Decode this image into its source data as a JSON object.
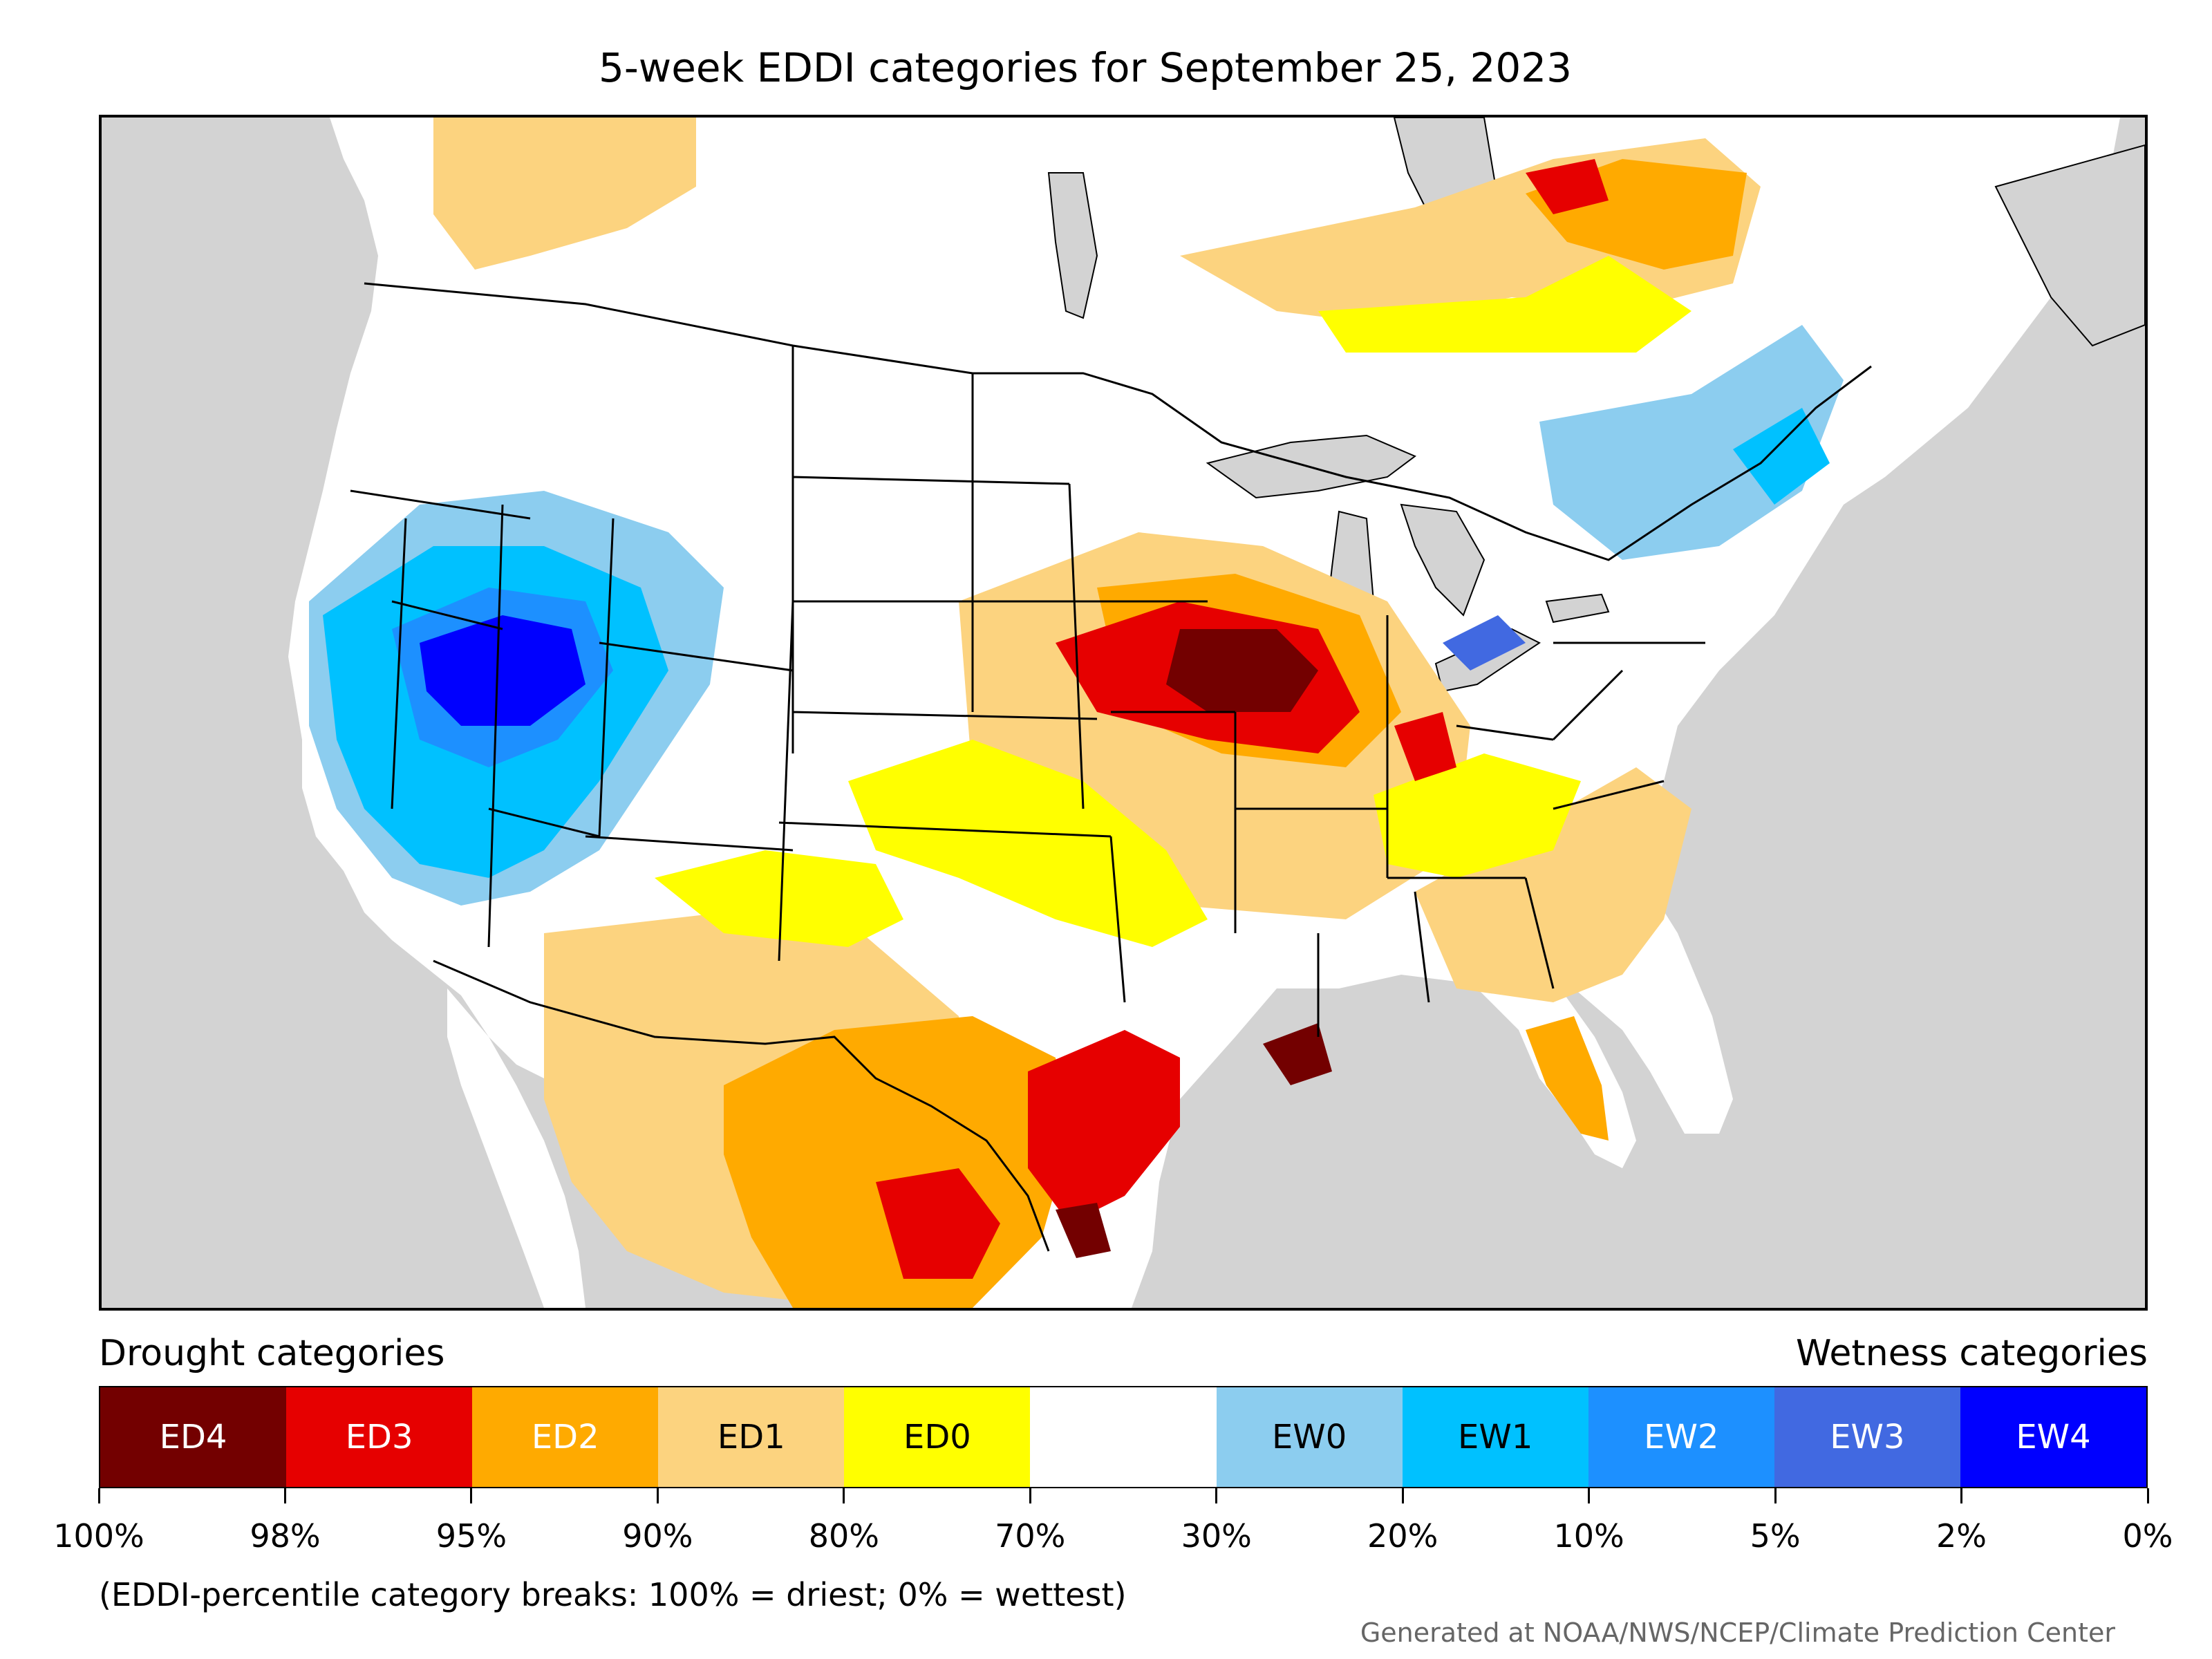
{
  "title": "5-week EDDI categories for September 25, 2023",
  "legend": {
    "drought_heading": "Drought categories",
    "wetness_heading": "Wetness categories",
    "categories": [
      {
        "label": "ED4",
        "color": "#730000",
        "text_color": "#ffffff"
      },
      {
        "label": "ED3",
        "color": "#e60000",
        "text_color": "#ffffff"
      },
      {
        "label": "ED2",
        "color": "#ffaa00",
        "text_color": "#ffffff"
      },
      {
        "label": "ED1",
        "color": "#fcd37f",
        "text_color": "#000000"
      },
      {
        "label": "ED0",
        "color": "#ffff00",
        "text_color": "#000000"
      },
      {
        "label": "",
        "color": "#ffffff",
        "text_color": "#000000"
      },
      {
        "label": "EW0",
        "color": "#8ccdef",
        "text_color": "#000000"
      },
      {
        "label": "EW1",
        "color": "#00c1ff",
        "text_color": "#000000"
      },
      {
        "label": "EW2",
        "color": "#1d90ff",
        "text_color": "#ffffff"
      },
      {
        "label": "EW3",
        "color": "#4169e1",
        "text_color": "#ffffff"
      },
      {
        "label": "EW4",
        "color": "#0000ff",
        "text_color": "#ffffff"
      }
    ],
    "tick_labels": [
      "100%",
      "98%",
      "95%",
      "90%",
      "80%",
      "70%",
      "30%",
      "20%",
      "10%",
      "5%",
      "2%",
      "0%"
    ]
  },
  "note": "(EDDI-percentile category breaks: 100% = driest; 0% = wettest)",
  "credit": "Generated at NOAA/NWS/NCEP/Climate Prediction Center",
  "map": {
    "background_color": "#d3d3d3",
    "land_color": "#ffffff",
    "border_color": "#000000"
  }
}
